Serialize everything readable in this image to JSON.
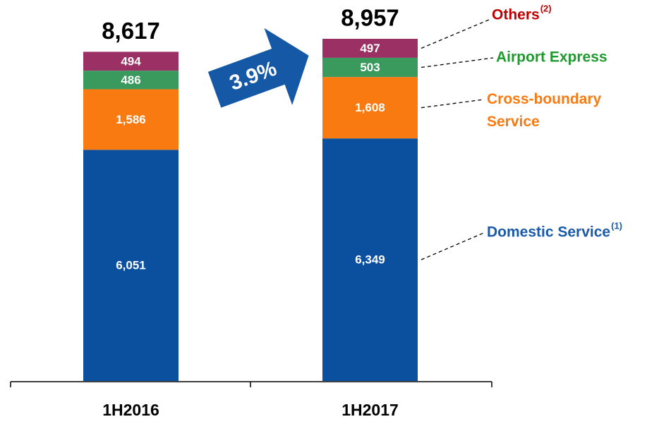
{
  "chart_data": {
    "type": "stacked_bar",
    "categories": [
      "1H2016",
      "1H2017"
    ],
    "series": [
      {
        "name": "Domestic Service",
        "footnote": "(1)",
        "color": "#0b4f9f",
        "label_color": "#1a5aa8",
        "values": [
          6051,
          6349
        ],
        "value_labels": [
          "6,051",
          "6,349"
        ]
      },
      {
        "name": "Cross-boundary Service",
        "color": "#f97a10",
        "label_color": "#f97a10",
        "values": [
          1586,
          1608
        ],
        "value_labels": [
          "1,586",
          "1,608"
        ]
      },
      {
        "name": "Airport Express",
        "color": "#3a9a5e",
        "label_color": "#1f9a2e",
        "values": [
          486,
          503
        ],
        "value_labels": [
          "486",
          "503"
        ]
      },
      {
        "name": "Others",
        "footnote": "(2)",
        "color": "#9b3064",
        "label_color": "#c00000",
        "values": [
          494,
          497
        ],
        "value_labels": [
          "494",
          "497"
        ]
      }
    ],
    "totals": [
      8617,
      8957
    ],
    "total_labels": [
      "8,617",
      "8,957"
    ],
    "growth_annotation": "3.9%"
  }
}
